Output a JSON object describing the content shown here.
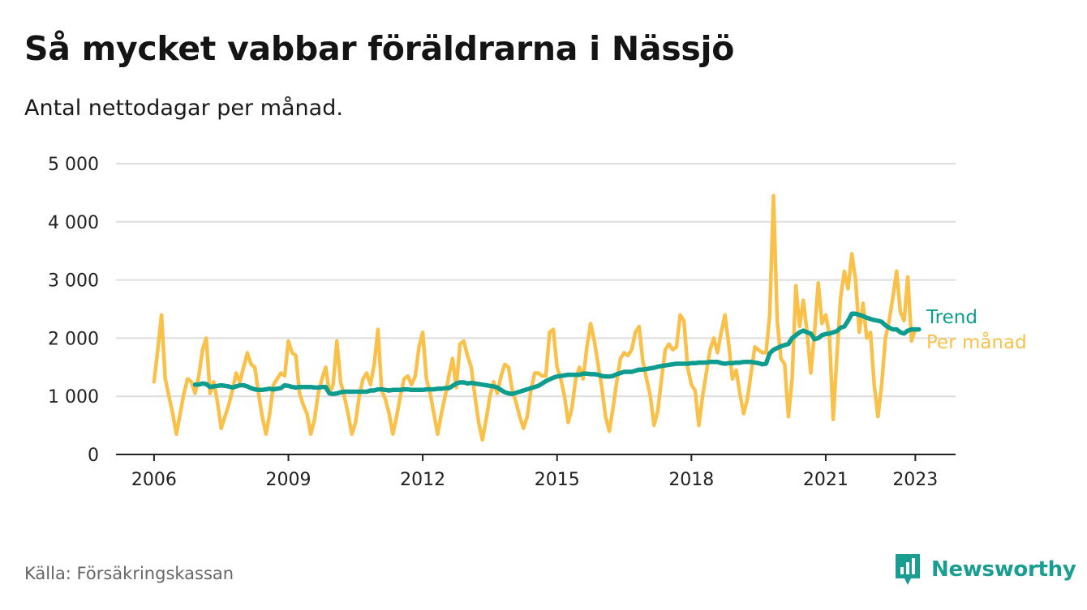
{
  "title": "Så mycket vabbar föräldrarna i Nässjö",
  "subtitle": "Antal nettodagar per månad.",
  "source": "Källa: Försäkringskassan",
  "brand": {
    "name": "Newsworthy",
    "icon": "newsworthy-bar-chart-icon"
  },
  "colors": {
    "per_month": "#F9C14A",
    "trend": "#0E9C8E",
    "grid": "#dddddd",
    "axis": "#222222",
    "brand": "#1a9e91"
  },
  "chart_data": {
    "type": "line",
    "ylim": [
      0,
      5000
    ],
    "yticks": [
      0,
      1000,
      2000,
      3000,
      4000,
      5000
    ],
    "ytick_labels": [
      "0",
      "1 000",
      "2 000",
      "3 000",
      "4 000",
      "5 000"
    ],
    "xlim": [
      2005.15,
      2023.9
    ],
    "xticks": [
      2006,
      2009,
      2012,
      2015,
      2018,
      2021,
      2023
    ],
    "xtick_labels": [
      "2006",
      "2009",
      "2012",
      "2015",
      "2018",
      "2021",
      "2023"
    ],
    "grid": true,
    "legend_position": "right of line ends",
    "series": [
      {
        "name": "Per månad",
        "start": [
          2006,
          1
        ],
        "values": [
          1250,
          1800,
          2400,
          1300,
          1000,
          700,
          350,
          700,
          1050,
          1300,
          1250,
          1050,
          1350,
          1800,
          2000,
          1050,
          1250,
          900,
          450,
          650,
          850,
          1100,
          1400,
          1250,
          1500,
          1750,
          1550,
          1500,
          1050,
          650,
          350,
          700,
          1200,
          1300,
          1400,
          1350,
          1950,
          1750,
          1700,
          1050,
          850,
          700,
          350,
          600,
          1050,
          1300,
          1500,
          1050,
          1200,
          1950,
          1250,
          1000,
          700,
          350,
          550,
          1000,
          1300,
          1400,
          1200,
          1550,
          2150,
          1100,
          950,
          700,
          350,
          650,
          1000,
          1300,
          1350,
          1200,
          1350,
          1850,
          2100,
          1300,
          1050,
          700,
          350,
          700,
          1000,
          1350,
          1650,
          1150,
          1900,
          1950,
          1700,
          1500,
          1000,
          550,
          250,
          600,
          1000,
          1250,
          1050,
          1350,
          1550,
          1500,
          1100,
          900,
          650,
          450,
          650,
          1100,
          1400,
          1400,
          1350,
          1350,
          2100,
          2150,
          1500,
          1300,
          1000,
          550,
          800,
          1300,
          1500,
          1300,
          1850,
          2250,
          1950,
          1550,
          1150,
          650,
          400,
          800,
          1250,
          1650,
          1750,
          1700,
          1800,
          2100,
          2200,
          1600,
          1300,
          1000,
          500,
          750,
          1300,
          1800,
          1900,
          1800,
          1850,
          2400,
          2300,
          1500,
          1200,
          1100,
          500,
          1000,
          1400,
          1800,
          2000,
          1750,
          2100,
          2400,
          1900,
          1300,
          1450,
          1050,
          700,
          950,
          1400,
          1850,
          1800,
          1750,
          1750,
          2400,
          4450,
          2300,
          1650,
          1550,
          650,
          1300,
          2900,
          2200,
          2650,
          2100,
          1400,
          2100,
          2950,
          2250,
          2400,
          2050,
          600,
          1700,
          2700,
          3150,
          2850,
          3450,
          3000,
          2100,
          2600,
          2000,
          2100,
          1200,
          650,
          1200,
          2000,
          2300,
          2700,
          3150,
          2450,
          2300,
          3050,
          1950,
          2150
        ]
      },
      {
        "name": "Trend",
        "start": [
          2006,
          12
        ],
        "values": [
          1200,
          1200,
          1220,
          1210,
          1160,
          1170,
          1180,
          1190,
          1180,
          1170,
          1150,
          1170,
          1190,
          1190,
          1170,
          1140,
          1120,
          1110,
          1110,
          1120,
          1130,
          1120,
          1130,
          1140,
          1190,
          1180,
          1160,
          1150,
          1160,
          1160,
          1160,
          1160,
          1150,
          1150,
          1160,
          1160,
          1050,
          1040,
          1050,
          1070,
          1080,
          1080,
          1080,
          1080,
          1080,
          1080,
          1080,
          1100,
          1100,
          1120,
          1120,
          1110,
          1100,
          1110,
          1110,
          1110,
          1120,
          1120,
          1110,
          1110,
          1110,
          1110,
          1120,
          1120,
          1120,
          1130,
          1130,
          1140,
          1140,
          1180,
          1220,
          1240,
          1240,
          1220,
          1230,
          1220,
          1210,
          1200,
          1190,
          1180,
          1170,
          1150,
          1110,
          1070,
          1050,
          1040,
          1060,
          1080,
          1100,
          1120,
          1140,
          1160,
          1180,
          1220,
          1260,
          1290,
          1320,
          1340,
          1350,
          1360,
          1370,
          1370,
          1370,
          1370,
          1390,
          1390,
          1380,
          1380,
          1370,
          1350,
          1340,
          1340,
          1350,
          1380,
          1400,
          1420,
          1420,
          1420,
          1440,
          1460,
          1460,
          1470,
          1480,
          1490,
          1510,
          1520,
          1530,
          1540,
          1550,
          1560,
          1560,
          1560,
          1560,
          1570,
          1570,
          1580,
          1580,
          1580,
          1590,
          1590,
          1590,
          1570,
          1560,
          1570,
          1570,
          1580,
          1580,
          1590,
          1590,
          1590,
          1580,
          1570,
          1550,
          1560,
          1740,
          1800,
          1830,
          1860,
          1880,
          1900,
          2000,
          2050,
          2100,
          2130,
          2100,
          2080,
          1980,
          2000,
          2050,
          2070,
          2080,
          2100,
          2120,
          2180,
          2200,
          2300,
          2420,
          2420,
          2400,
          2380,
          2350,
          2330,
          2310,
          2300,
          2280,
          2220,
          2180,
          2150,
          2150,
          2100,
          2080,
          2130,
          2150,
          2150,
          2150
        ]
      }
    ]
  }
}
